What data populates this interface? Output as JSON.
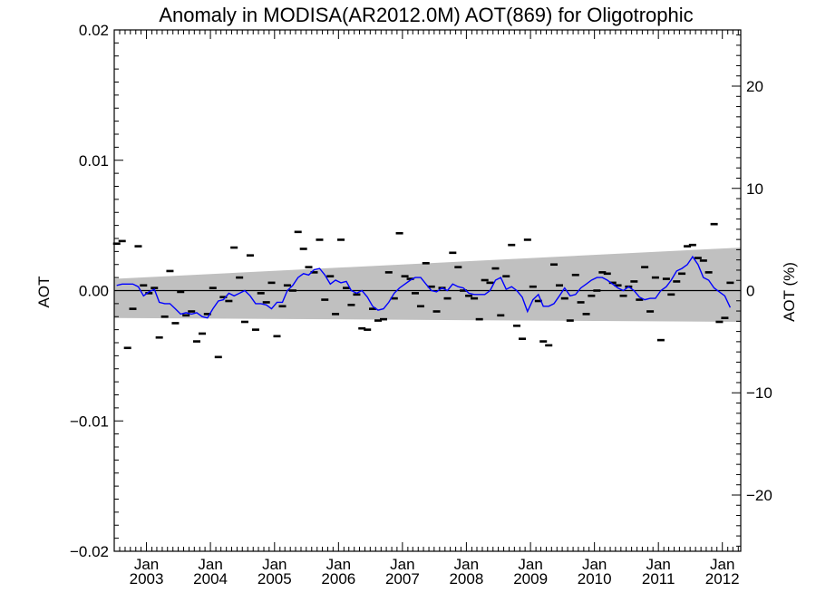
{
  "chart_data": {
    "type": "scatter",
    "title": "Anomaly in MODISA(AR2012.0M) AOT(869) for Oligotrophic",
    "ylabel_left": "AOT",
    "ylabel_right": "AOT (%)",
    "ylim": [
      -0.02,
      0.02
    ],
    "ylim_right": [
      -25.5,
      25.5
    ],
    "xlim": [
      "2002-07-01",
      "2012-04-15"
    ],
    "y_ticks_left": [
      {
        "value": -0.02,
        "label": "−0.02"
      },
      {
        "value": -0.01,
        "label": "−0.01"
      },
      {
        "value": 0.0,
        "label": "0.00"
      },
      {
        "value": 0.01,
        "label": "0.01"
      },
      {
        "value": 0.02,
        "label": "0.02"
      }
    ],
    "y_ticks_right": [
      {
        "value": -20,
        "label": "−20"
      },
      {
        "value": -10,
        "label": "−10"
      },
      {
        "value": 0,
        "label": "0"
      },
      {
        "value": 10,
        "label": "10"
      },
      {
        "value": 20,
        "label": "20"
      }
    ],
    "x_ticks": [
      {
        "date": "2003-01-01",
        "month": "Jan",
        "year": "2003"
      },
      {
        "date": "2004-01-01",
        "month": "Jan",
        "year": "2004"
      },
      {
        "date": "2005-01-01",
        "month": "Jan",
        "year": "2005"
      },
      {
        "date": "2006-01-01",
        "month": "Jan",
        "year": "2006"
      },
      {
        "date": "2007-01-01",
        "month": "Jan",
        "year": "2007"
      },
      {
        "date": "2008-01-01",
        "month": "Jan",
        "year": "2008"
      },
      {
        "date": "2009-01-01",
        "month": "Jan",
        "year": "2009"
      },
      {
        "date": "2010-01-01",
        "month": "Jan",
        "year": "2010"
      },
      {
        "date": "2011-01-01",
        "month": "Jan",
        "year": "2011"
      },
      {
        "date": "2012-01-01",
        "month": "Jan",
        "year": "2012"
      }
    ],
    "zero_line": 0.0,
    "band": {
      "start": "2002-07-01",
      "end": "2012-04-15",
      "upper_start": 0.0009,
      "upper_end": 0.0033,
      "lower_start": -0.0021,
      "lower_end": -0.0024,
      "color": "#c0c0c0"
    },
    "monthly_anomalies": {
      "color": "#000000",
      "points": [
        [
          "2002-07-15",
          0.0036
        ],
        [
          "2002-08-15",
          0.0038
        ],
        [
          "2002-09-15",
          -0.0044
        ],
        [
          "2002-10-15",
          -0.0014
        ],
        [
          "2002-11-15",
          0.0034
        ],
        [
          "2002-12-15",
          0.0004
        ],
        [
          "2003-01-15",
          -0.0002
        ],
        [
          "2003-02-15",
          0.0002
        ],
        [
          "2003-03-15",
          -0.0036
        ],
        [
          "2003-04-15",
          -0.002
        ],
        [
          "2003-05-15",
          0.0015
        ],
        [
          "2003-06-15",
          -0.0025
        ],
        [
          "2003-07-15",
          -0.0001
        ],
        [
          "2003-08-15",
          -0.0019
        ],
        [
          "2003-09-15",
          -0.0016
        ],
        [
          "2003-10-15",
          -0.0039
        ],
        [
          "2003-11-15",
          -0.0033
        ],
        [
          "2003-12-15",
          -0.0018
        ],
        [
          "2004-01-15",
          0.0002
        ],
        [
          "2004-02-15",
          -0.0051
        ],
        [
          "2004-03-15",
          -0.0005
        ],
        [
          "2004-04-15",
          -0.0008
        ],
        [
          "2004-05-15",
          0.0033
        ],
        [
          "2004-06-15",
          0.001
        ],
        [
          "2004-07-15",
          -0.0024
        ],
        [
          "2004-08-15",
          0.0027
        ],
        [
          "2004-09-15",
          -0.003
        ],
        [
          "2004-10-15",
          -0.0002
        ],
        [
          "2004-11-15",
          -0.0009
        ],
        [
          "2004-12-15",
          0.0006
        ],
        [
          "2005-01-15",
          -0.0035
        ],
        [
          "2005-02-15",
          -0.0012
        ],
        [
          "2005-03-15",
          0.0004
        ],
        [
          "2005-04-15",
          0.0
        ],
        [
          "2005-05-15",
          0.0045
        ],
        [
          "2005-06-15",
          0.0032
        ],
        [
          "2005-07-15",
          0.0018
        ],
        [
          "2005-08-15",
          0.0014
        ],
        [
          "2005-09-15",
          0.0039
        ],
        [
          "2005-10-15",
          -0.0007
        ],
        [
          "2005-11-15",
          0.0011
        ],
        [
          "2005-12-15",
          -0.0018
        ],
        [
          "2006-01-15",
          0.0039
        ],
        [
          "2006-02-15",
          0.0002
        ],
        [
          "2006-03-15",
          -0.0011
        ],
        [
          "2006-04-15",
          -0.0003
        ],
        [
          "2006-05-15",
          -0.0029
        ],
        [
          "2006-06-15",
          -0.003
        ],
        [
          "2006-07-15",
          -0.0014
        ],
        [
          "2006-08-15",
          -0.0023
        ],
        [
          "2006-09-15",
          -0.0022
        ],
        [
          "2006-10-15",
          0.0014
        ],
        [
          "2006-11-15",
          -0.0006
        ],
        [
          "2006-12-15",
          0.0044
        ],
        [
          "2007-01-15",
          0.0011
        ],
        [
          "2007-02-15",
          0.0009
        ],
        [
          "2007-03-15",
          -0.0002
        ],
        [
          "2007-04-15",
          -0.0012
        ],
        [
          "2007-05-15",
          0.0021
        ],
        [
          "2007-06-15",
          0.0003
        ],
        [
          "2007-07-15",
          -0.0016
        ],
        [
          "2007-08-15",
          0.0002
        ],
        [
          "2007-09-15",
          -0.0006
        ],
        [
          "2007-10-15",
          0.0029
        ],
        [
          "2007-11-15",
          0.0018
        ],
        [
          "2007-12-15",
          0.0
        ],
        [
          "2008-01-15",
          -0.0004
        ],
        [
          "2008-02-15",
          -0.0006
        ],
        [
          "2008-03-15",
          -0.0022
        ],
        [
          "2008-04-15",
          0.0008
        ],
        [
          "2008-05-15",
          0.0006
        ],
        [
          "2008-06-15",
          0.0017
        ],
        [
          "2008-07-15",
          -0.0019
        ],
        [
          "2008-08-15",
          0.0011
        ],
        [
          "2008-09-15",
          0.0035
        ],
        [
          "2008-10-15",
          -0.0027
        ],
        [
          "2008-11-15",
          -0.0037
        ],
        [
          "2008-12-15",
          0.0039
        ],
        [
          "2009-01-15",
          0.0003
        ],
        [
          "2009-02-15",
          -0.0008
        ],
        [
          "2009-03-15",
          -0.0039
        ],
        [
          "2009-04-15",
          -0.0042
        ],
        [
          "2009-05-15",
          0.002
        ],
        [
          "2009-06-15",
          0.0004
        ],
        [
          "2009-07-15",
          -0.0006
        ],
        [
          "2009-08-15",
          -0.0023
        ],
        [
          "2009-09-15",
          0.0012
        ],
        [
          "2009-10-15",
          -0.0009
        ],
        [
          "2009-11-15",
          -0.0018
        ],
        [
          "2009-12-15",
          -0.0004
        ],
        [
          "2010-01-15",
          0.0
        ],
        [
          "2010-02-15",
          0.0014
        ],
        [
          "2010-03-15",
          0.0013
        ],
        [
          "2010-04-15",
          0.0006
        ],
        [
          "2010-05-15",
          0.0004
        ],
        [
          "2010-06-15",
          -0.0004
        ],
        [
          "2010-07-15",
          0.0003
        ],
        [
          "2010-08-15",
          0.0007
        ],
        [
          "2010-09-15",
          -0.0007
        ],
        [
          "2010-10-15",
          0.0018
        ],
        [
          "2010-11-15",
          -0.0016
        ],
        [
          "2010-12-15",
          0.001
        ],
        [
          "2011-01-15",
          -0.0038
        ],
        [
          "2011-02-15",
          0.0009
        ],
        [
          "2011-03-15",
          -0.0003
        ],
        [
          "2011-04-15",
          0.0007
        ],
        [
          "2011-05-15",
          0.0013
        ],
        [
          "2011-06-15",
          0.0034
        ],
        [
          "2011-07-15",
          0.0035
        ],
        [
          "2011-08-15",
          0.0025
        ],
        [
          "2011-09-15",
          0.0023
        ],
        [
          "2011-10-15",
          0.0014
        ],
        [
          "2011-11-15",
          0.0051
        ],
        [
          "2011-12-15",
          -0.0024
        ],
        [
          "2012-01-15",
          -0.0021
        ],
        [
          "2012-02-15",
          0.0006
        ]
      ]
    },
    "smoothed": {
      "color": "#0000ff",
      "points": [
        [
          "2002-07-15",
          0.0004
        ],
        [
          "2002-08-15",
          0.0005
        ],
        [
          "2002-09-15",
          0.0005
        ],
        [
          "2002-10-15",
          0.0005
        ],
        [
          "2002-11-15",
          0.0003
        ],
        [
          "2002-12-15",
          -0.0004
        ],
        [
          "2003-01-15",
          -0.0001
        ],
        [
          "2003-02-15",
          0.0001
        ],
        [
          "2003-03-15",
          -0.0009
        ],
        [
          "2003-04-15",
          -0.001
        ],
        [
          "2003-05-15",
          -0.001
        ],
        [
          "2003-06-15",
          -0.0014
        ],
        [
          "2003-07-15",
          -0.0018
        ],
        [
          "2003-08-15",
          -0.0017
        ],
        [
          "2003-09-15",
          -0.0018
        ],
        [
          "2003-10-15",
          -0.0017
        ],
        [
          "2003-11-15",
          -0.002
        ],
        [
          "2003-12-15",
          -0.0021
        ],
        [
          "2004-01-15",
          -0.0014
        ],
        [
          "2004-02-15",
          -0.0008
        ],
        [
          "2004-03-15",
          -0.0007
        ],
        [
          "2004-04-15",
          -0.0002
        ],
        [
          "2004-05-15",
          -0.0004
        ],
        [
          "2004-06-15",
          -0.0002
        ],
        [
          "2004-07-15",
          0.0
        ],
        [
          "2004-08-15",
          -0.0004
        ],
        [
          "2004-09-15",
          -0.001
        ],
        [
          "2004-10-15",
          -0.001
        ],
        [
          "2004-11-15",
          -0.0011
        ],
        [
          "2004-12-15",
          -0.0014
        ],
        [
          "2005-01-15",
          -0.0009
        ],
        [
          "2005-02-15",
          -0.0009
        ],
        [
          "2005-03-15",
          0.0
        ],
        [
          "2005-04-15",
          0.0004
        ],
        [
          "2005-05-15",
          0.001
        ],
        [
          "2005-06-15",
          0.0013
        ],
        [
          "2005-07-15",
          0.0012
        ],
        [
          "2005-08-15",
          0.0016
        ],
        [
          "2005-09-15",
          0.0017
        ],
        [
          "2005-10-15",
          0.0012
        ],
        [
          "2005-11-15",
          0.0005
        ],
        [
          "2005-12-15",
          0.0008
        ],
        [
          "2006-01-15",
          0.0006
        ],
        [
          "2006-02-15",
          0.0007
        ],
        [
          "2006-03-15",
          0.0
        ],
        [
          "2006-04-15",
          -0.0002
        ],
        [
          "2006-05-15",
          0.0
        ],
        [
          "2006-06-15",
          -0.0005
        ],
        [
          "2006-07-15",
          -0.0012
        ],
        [
          "2006-08-15",
          -0.0015
        ],
        [
          "2006-09-15",
          -0.0014
        ],
        [
          "2006-10-15",
          -0.0009
        ],
        [
          "2006-11-15",
          -0.0002
        ],
        [
          "2006-12-15",
          0.0002
        ],
        [
          "2007-01-15",
          0.0005
        ],
        [
          "2007-02-15",
          0.0008
        ],
        [
          "2007-03-15",
          0.001
        ],
        [
          "2007-04-15",
          0.001
        ],
        [
          "2007-05-15",
          0.0005
        ],
        [
          "2007-06-15",
          0.0
        ],
        [
          "2007-07-15",
          -0.0001
        ],
        [
          "2007-08-15",
          0.0002
        ],
        [
          "2007-09-15",
          0.0
        ],
        [
          "2007-10-15",
          0.0005
        ],
        [
          "2007-11-15",
          0.0003
        ],
        [
          "2007-12-15",
          0.0002
        ],
        [
          "2008-01-15",
          -0.0002
        ],
        [
          "2008-02-15",
          -0.0003
        ],
        [
          "2008-03-15",
          -0.0003
        ],
        [
          "2008-04-15",
          -0.0003
        ],
        [
          "2008-05-15",
          0.0
        ],
        [
          "2008-06-15",
          0.0008
        ],
        [
          "2008-07-15",
          0.001
        ],
        [
          "2008-08-15",
          0.0001
        ],
        [
          "2008-09-15",
          0.0003
        ],
        [
          "2008-10-15",
          0.0
        ],
        [
          "2008-11-15",
          -0.0005
        ],
        [
          "2008-12-15",
          -0.0016
        ],
        [
          "2009-01-15",
          -0.0007
        ],
        [
          "2009-02-15",
          -0.0003
        ],
        [
          "2009-03-15",
          -0.0012
        ],
        [
          "2009-04-15",
          -0.0012
        ],
        [
          "2009-05-15",
          -0.001
        ],
        [
          "2009-06-15",
          -0.0004
        ],
        [
          "2009-07-15",
          0.0002
        ],
        [
          "2009-08-15",
          -0.0004
        ],
        [
          "2009-09-15",
          -0.0003
        ],
        [
          "2009-10-15",
          0.0002
        ],
        [
          "2009-11-15",
          0.0005
        ],
        [
          "2009-12-15",
          0.0008
        ],
        [
          "2010-01-15",
          0.001
        ],
        [
          "2010-02-15",
          0.001
        ],
        [
          "2010-03-15",
          0.0008
        ],
        [
          "2010-04-15",
          0.0005
        ],
        [
          "2010-05-15",
          0.0002
        ],
        [
          "2010-06-15",
          0.0
        ],
        [
          "2010-07-15",
          0.0003
        ],
        [
          "2010-08-15",
          0.0
        ],
        [
          "2010-09-15",
          -0.0005
        ],
        [
          "2010-10-15",
          -0.0007
        ],
        [
          "2010-11-15",
          -0.0006
        ],
        [
          "2010-12-15",
          -0.0006
        ],
        [
          "2011-01-15",
          0.0
        ],
        [
          "2011-02-15",
          0.0003
        ],
        [
          "2011-03-15",
          0.0008
        ],
        [
          "2011-04-15",
          0.0015
        ],
        [
          "2011-05-15",
          0.0017
        ],
        [
          "2011-06-15",
          0.002
        ],
        [
          "2011-07-15",
          0.0026
        ],
        [
          "2011-08-15",
          0.002
        ],
        [
          "2011-09-15",
          0.001
        ],
        [
          "2011-10-15",
          0.0008
        ],
        [
          "2011-11-15",
          0.0002
        ],
        [
          "2011-12-15",
          -0.0001
        ],
        [
          "2012-01-15",
          -0.0004
        ],
        [
          "2012-02-15",
          -0.0013
        ]
      ]
    }
  }
}
